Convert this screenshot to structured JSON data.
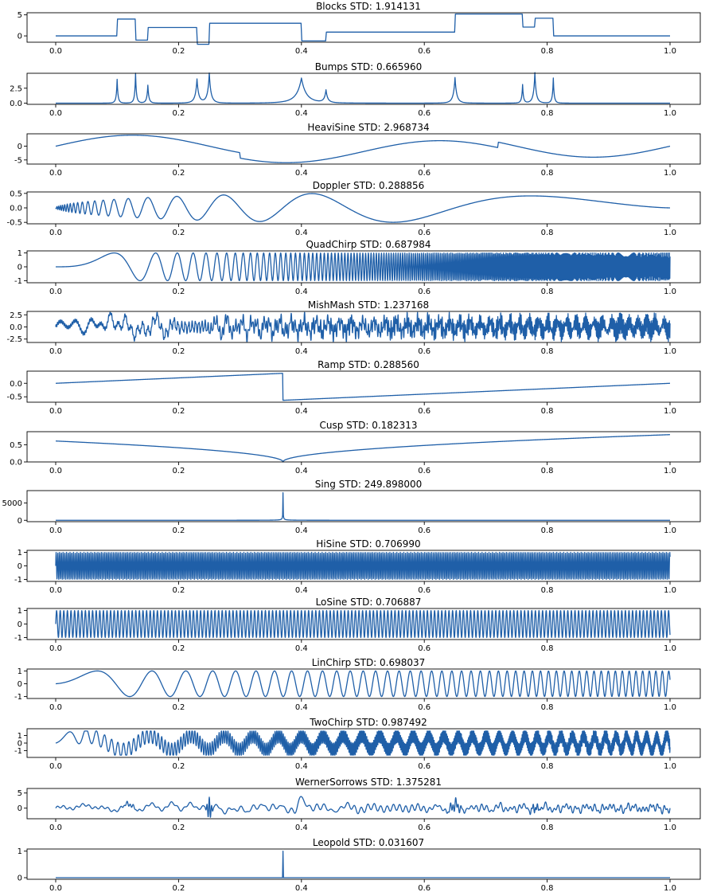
{
  "figure": {
    "line_color": "#1f5fa8"
  },
  "chart_data": [
    {
      "type": "line",
      "name": "Blocks",
      "title": "Blocks STD: 1.914131",
      "std": 1.914131,
      "xlim": [
        0,
        1
      ],
      "ylim": [
        -1.5,
        5.5
      ],
      "xticks": [
        0.0,
        0.2,
        0.4,
        0.6,
        0.8,
        1.0
      ],
      "xtick_labels": [
        "0.0",
        "0.2",
        "0.4",
        "0.6",
        "0.8",
        "1.0"
      ],
      "yticks": [
        0,
        5
      ],
      "ytick_labels": [
        "0",
        "5"
      ],
      "signal": "blocks"
    },
    {
      "type": "line",
      "name": "Bumps",
      "title": "Bumps STD: 0.665960",
      "std": 0.66596,
      "xlim": [
        0,
        1
      ],
      "ylim": [
        -0.2,
        5.0
      ],
      "xticks": [
        0.0,
        0.2,
        0.4,
        0.6,
        0.8,
        1.0
      ],
      "xtick_labels": [
        "0.0",
        "0.2",
        "0.4",
        "0.6",
        "0.8",
        "1.0"
      ],
      "yticks": [
        0,
        2.5
      ],
      "ytick_labels": [
        "0.0",
        "2.5"
      ],
      "signal": "bumps"
    },
    {
      "type": "line",
      "name": "HeaviSine",
      "title": "HeaviSine STD: 2.968734",
      "std": 2.968734,
      "xlim": [
        0,
        1
      ],
      "ylim": [
        -6.5,
        4.5
      ],
      "xticks": [
        0.0,
        0.2,
        0.4,
        0.6,
        0.8,
        1.0
      ],
      "xtick_labels": [
        "0.0",
        "0.2",
        "0.4",
        "0.6",
        "0.8",
        "1.0"
      ],
      "yticks": [
        -5,
        0
      ],
      "ytick_labels": [
        "-5",
        "0"
      ],
      "signal": "heavisine"
    },
    {
      "type": "line",
      "name": "Doppler",
      "title": "Doppler STD: 0.288856",
      "std": 0.288856,
      "xlim": [
        0,
        1
      ],
      "ylim": [
        -0.55,
        0.55
      ],
      "xticks": [
        0.0,
        0.2,
        0.4,
        0.6,
        0.8,
        1.0
      ],
      "xtick_labels": [
        "0.0",
        "0.2",
        "0.4",
        "0.6",
        "0.8",
        "1.0"
      ],
      "yticks": [
        -0.5,
        0,
        0.5
      ],
      "ytick_labels": [
        "-0.5",
        "0.0",
        "0.5"
      ],
      "signal": "doppler"
    },
    {
      "type": "line",
      "name": "QuadChirp",
      "title": "QuadChirp STD: 0.687984",
      "std": 0.687984,
      "xlim": [
        0,
        1
      ],
      "ylim": [
        -1.15,
        1.15
      ],
      "xticks": [
        0.0,
        0.2,
        0.4,
        0.6,
        0.8,
        1.0
      ],
      "xtick_labels": [
        "0.0",
        "0.2",
        "0.4",
        "0.6",
        "0.8",
        "1.0"
      ],
      "yticks": [
        -1,
        0,
        1
      ],
      "ytick_labels": [
        "-1",
        "0",
        "1"
      ],
      "signal": "quadchirp"
    },
    {
      "type": "line",
      "name": "MishMash",
      "title": "MishMash STD: 1.237168",
      "std": 1.237168,
      "xlim": [
        0,
        1
      ],
      "ylim": [
        -3.2,
        3.2
      ],
      "xticks": [
        0.0,
        0.2,
        0.4,
        0.6,
        0.8,
        1.0
      ],
      "xtick_labels": [
        "0.0",
        "0.2",
        "0.4",
        "0.6",
        "0.8",
        "1.0"
      ],
      "yticks": [
        -2.5,
        0,
        2.5
      ],
      "ytick_labels": [
        "-2.5",
        "0.0",
        "2.5"
      ],
      "signal": "mishmash"
    },
    {
      "type": "line",
      "name": "Ramp",
      "title": "Ramp STD: 0.288560",
      "std": 0.28856,
      "xlim": [
        0,
        1
      ],
      "ylim": [
        -0.7,
        0.45
      ],
      "xticks": [
        0.0,
        0.2,
        0.4,
        0.6,
        0.8,
        1.0
      ],
      "xtick_labels": [
        "0.0",
        "0.2",
        "0.4",
        "0.6",
        "0.8",
        "1.0"
      ],
      "yticks": [
        -0.5,
        0
      ],
      "ytick_labels": [
        "-0.5",
        "0.0"
      ],
      "signal": "ramp"
    },
    {
      "type": "line",
      "name": "Cusp",
      "title": "Cusp STD: 0.182313",
      "std": 0.182313,
      "xlim": [
        0,
        1
      ],
      "ylim": [
        0,
        0.88
      ],
      "xticks": [
        0.0,
        0.2,
        0.4,
        0.6,
        0.8,
        1.0
      ],
      "xtick_labels": [
        "0.0",
        "0.2",
        "0.4",
        "0.6",
        "0.8",
        "1.0"
      ],
      "yticks": [
        0,
        0.5
      ],
      "ytick_labels": [
        "0.0",
        "0.5"
      ],
      "signal": "cusp"
    },
    {
      "type": "line",
      "name": "Sing",
      "title": "Sing STD: 249.898000",
      "std": 249.898,
      "xlim": [
        0,
        1
      ],
      "ylim": [
        -400,
        8600
      ],
      "xticks": [
        0.0,
        0.2,
        0.4,
        0.6,
        0.8,
        1.0
      ],
      "xtick_labels": [
        "0.0",
        "0.2",
        "0.4",
        "0.6",
        "0.8",
        "1.0"
      ],
      "yticks": [
        0,
        5000
      ],
      "ytick_labels": [
        "0",
        "5000"
      ],
      "signal": "sing"
    },
    {
      "type": "line",
      "name": "HiSine",
      "title": "HiSine STD: 0.706990",
      "std": 0.70699,
      "xlim": [
        0,
        1
      ],
      "ylim": [
        -1.15,
        1.15
      ],
      "xticks": [
        0.0,
        0.2,
        0.4,
        0.6,
        0.8,
        1.0
      ],
      "xtick_labels": [
        "0.0",
        "0.2",
        "0.4",
        "0.6",
        "0.8",
        "1.0"
      ],
      "yticks": [
        -1,
        0,
        1
      ],
      "ytick_labels": [
        "-1",
        "0",
        "1"
      ],
      "signal": "hisine"
    },
    {
      "type": "line",
      "name": "LoSine",
      "title": "LoSine STD: 0.706887",
      "std": 0.706887,
      "xlim": [
        0,
        1
      ],
      "ylim": [
        -1.15,
        1.15
      ],
      "xticks": [
        0.0,
        0.2,
        0.4,
        0.6,
        0.8,
        1.0
      ],
      "xtick_labels": [
        "0.0",
        "0.2",
        "0.4",
        "0.6",
        "0.8",
        "1.0"
      ],
      "yticks": [
        -1,
        0,
        1
      ],
      "ytick_labels": [
        "-1",
        "0",
        "1"
      ],
      "signal": "losine"
    },
    {
      "type": "line",
      "name": "LinChirp",
      "title": "LinChirp STD: 0.698037",
      "std": 0.698037,
      "xlim": [
        0,
        1
      ],
      "ylim": [
        -1.15,
        1.15
      ],
      "xticks": [
        0.0,
        0.2,
        0.4,
        0.6,
        0.8,
        1.0
      ],
      "xtick_labels": [
        "0.0",
        "0.2",
        "0.4",
        "0.6",
        "0.8",
        "1.0"
      ],
      "yticks": [
        -1,
        0,
        1
      ],
      "ytick_labels": [
        "-1",
        "0",
        "1"
      ],
      "signal": "linchirp"
    },
    {
      "type": "line",
      "name": "TwoChirp",
      "title": "TwoChirp STD: 0.987492",
      "std": 0.987492,
      "xlim": [
        0,
        1
      ],
      "ylim": [
        -1.9,
        1.9
      ],
      "xticks": [
        0.0,
        0.2,
        0.4,
        0.6,
        0.8,
        1.0
      ],
      "xtick_labels": [
        "0.0",
        "0.2",
        "0.4",
        "0.6",
        "0.8",
        "1.0"
      ],
      "yticks": [
        -1,
        0,
        1
      ],
      "ytick_labels": [
        "-1",
        "0",
        "1"
      ],
      "signal": "twochirp"
    },
    {
      "type": "line",
      "name": "WernerSorrows",
      "title": "WernerSorrows STD: 1.375281",
      "std": 1.375281,
      "xlim": [
        0,
        1
      ],
      "ylim": [
        -3.5,
        6.5
      ],
      "xticks": [
        0.0,
        0.2,
        0.4,
        0.6,
        0.8,
        1.0
      ],
      "xtick_labels": [
        "0.0",
        "0.2",
        "0.4",
        "0.6",
        "0.8",
        "1.0"
      ],
      "yticks": [
        0,
        5
      ],
      "ytick_labels": [
        "0",
        "5"
      ],
      "signal": "wernersorrows"
    },
    {
      "type": "line",
      "name": "Leopold",
      "title": "Leopold STD: 0.031607",
      "std": 0.031607,
      "xlim": [
        0,
        1
      ],
      "ylim": [
        -0.06,
        1.08
      ],
      "xticks": [
        0.0,
        0.2,
        0.4,
        0.6,
        0.8,
        1.0
      ],
      "xtick_labels": [
        "0.0",
        "0.2",
        "0.4",
        "0.6",
        "0.8",
        "1.0"
      ],
      "yticks": [
        0,
        1
      ],
      "ytick_labels": [
        "0",
        "1"
      ],
      "signal": "leopold"
    }
  ]
}
